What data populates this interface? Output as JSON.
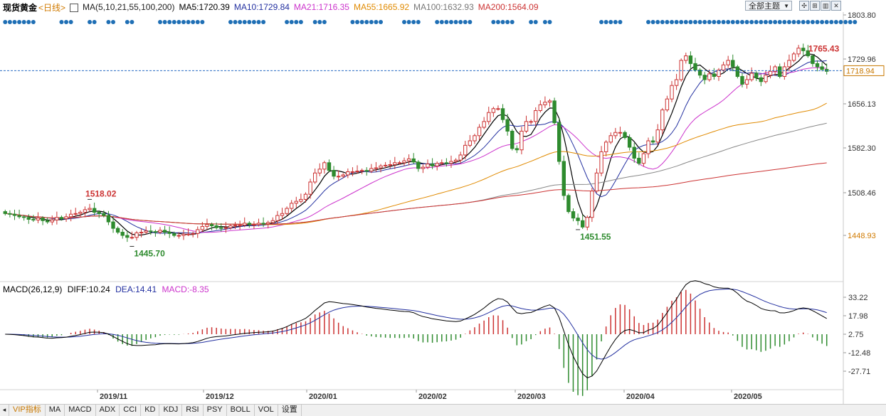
{
  "header": {
    "instrument": "现货黄金",
    "period": "<日线>",
    "ma_group": "MA(5,10,21,55,100,200)",
    "ma5": "MA5:1720.39",
    "ma10": "MA10:1729.84",
    "ma21": "MA21:1716.35",
    "ma55": "MA55:1665.92",
    "ma100": "MA100:1632.93",
    "ma200": "MA200:1564.09",
    "theme_label": "全部主题",
    "colors": {
      "ma5": "#000000",
      "ma10": "#2330a0",
      "ma21": "#cc33cc",
      "ma55": "#e08a00",
      "ma100": "#888888",
      "ma200": "#cc3333"
    }
  },
  "macd_header": {
    "label": "MACD(26,12,9)",
    "diff": "DIFF:10.24",
    "dea": "DEA:14.41",
    "macd": "MACD:-8.35"
  },
  "footer": {
    "tabs": [
      "VIP指标",
      "MA",
      "MACD",
      "ADX",
      "CCI",
      "KD",
      "KDJ",
      "RSI",
      "PSY",
      "BOLL",
      "VOL",
      "设置"
    ]
  },
  "chart_data": [
    {
      "type": "candlestick",
      "y_ticks": [
        "1803.80",
        "1729.96",
        "1656.13",
        "1582.30",
        "1508.46",
        "1448.93"
      ],
      "current_price": "1718.94",
      "ylim": [
        1420,
        1810
      ],
      "x_labels": [
        "2019/11",
        "2019/12",
        "2020/01",
        "2020/02",
        "2020/03",
        "2020/04",
        "2020/05"
      ],
      "annotations": [
        {
          "text": "1518.02",
          "kind": "high"
        },
        {
          "text": "1445.70",
          "kind": "low"
        },
        {
          "text": "1451.55",
          "kind": "low"
        },
        {
          "text": "1765.43",
          "kind": "high"
        }
      ],
      "close_path": [
        1497,
        1496,
        1494,
        1492,
        1491,
        1488,
        1487,
        1490,
        1486,
        1484,
        1487,
        1491,
        1489,
        1492,
        1496,
        1497,
        1499,
        1503,
        1505,
        1499,
        1497,
        1494,
        1484,
        1474,
        1468,
        1463,
        1460,
        1460,
        1467,
        1468,
        1470,
        1469,
        1468,
        1471,
        1468,
        1466,
        1463,
        1463,
        1465,
        1465,
        1466,
        1472,
        1477,
        1480,
        1478,
        1475,
        1474,
        1475,
        1478,
        1479,
        1479,
        1482,
        1480,
        1480,
        1482,
        1481,
        1483,
        1486,
        1494,
        1497,
        1505,
        1513,
        1516,
        1519,
        1527,
        1546,
        1560,
        1566,
        1576,
        1564,
        1555,
        1555,
        1557,
        1562,
        1562,
        1563,
        1564,
        1563,
        1567,
        1568,
        1571,
        1572,
        1573,
        1576,
        1576,
        1579,
        1582,
        1577,
        1567,
        1569,
        1574,
        1571,
        1575,
        1576,
        1575,
        1578,
        1580,
        1588,
        1603,
        1610,
        1618,
        1631,
        1640,
        1654,
        1660,
        1660,
        1643,
        1625,
        1598,
        1596,
        1625,
        1640,
        1640,
        1657,
        1666,
        1670,
        1672,
        1638,
        1578,
        1525,
        1500,
        1490,
        1486,
        1476,
        1491,
        1532,
        1560,
        1593,
        1608,
        1618,
        1623,
        1623,
        1615,
        1600,
        1583,
        1575,
        1590,
        1610,
        1608,
        1627,
        1658,
        1675,
        1696,
        1705,
        1735,
        1742,
        1730,
        1720,
        1712,
        1705,
        1714,
        1710,
        1720,
        1728,
        1735,
        1725,
        1710,
        1698,
        1705,
        1715,
        1708,
        1702,
        1712,
        1718,
        1725,
        1710,
        1725,
        1735,
        1745,
        1754,
        1750,
        1742,
        1730,
        1725,
        1721,
        1718
      ]
    },
    {
      "type": "macd",
      "y_ticks": [
        "33.22",
        "17.98",
        "2.75",
        "-12.48",
        "-27.71"
      ],
      "ylim": [
        -35,
        40
      ]
    }
  ]
}
